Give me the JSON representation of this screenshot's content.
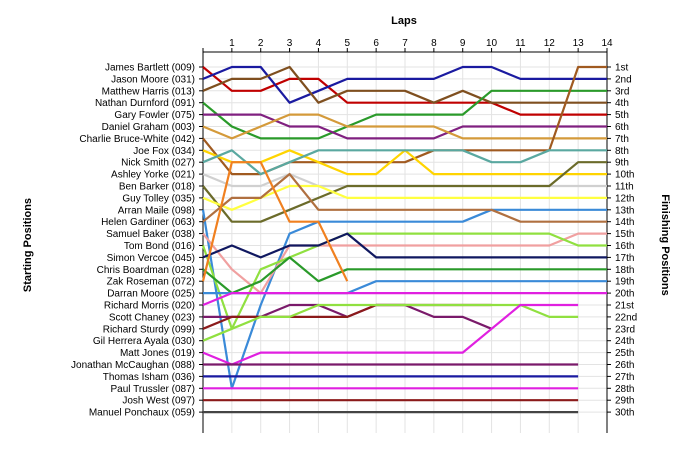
{
  "chart_data": {
    "type": "line",
    "title": "Laps",
    "ylabel_left": "Starting Positions",
    "ylabel_right": "Finishing Positions",
    "laps": [
      1,
      2,
      3,
      4,
      5,
      6,
      7,
      8,
      9,
      10,
      11,
      12,
      13,
      14
    ],
    "grid": true,
    "position_labels": [
      "1st",
      "2nd",
      "3rd",
      "4th",
      "5th",
      "6th",
      "7th",
      "8th",
      "9th",
      "10th",
      "11th",
      "12th",
      "13th",
      "14th",
      "15th",
      "16th",
      "17th",
      "18th",
      "19th",
      "20th",
      "21st",
      "22nd",
      "23rd",
      "24th",
      "25th",
      "26th",
      "27th",
      "28th",
      "29th",
      "30th"
    ],
    "series": [
      {
        "name": "James Bartlett (009)",
        "color": "#c00000",
        "positions": [
          1,
          3,
          3,
          2,
          2,
          4,
          4,
          4,
          4,
          4,
          4,
          5,
          5,
          5,
          5
        ]
      },
      {
        "name": "Jason Moore (031)",
        "color": "#1a1aa0",
        "positions": [
          2,
          1,
          1,
          4,
          3,
          2,
          2,
          2,
          2,
          1,
          1,
          2,
          2,
          2,
          2
        ]
      },
      {
        "name": "Matthew Harris (013)",
        "color": "#7f4f1f",
        "positions": [
          3,
          2,
          2,
          1,
          4,
          3,
          3,
          3,
          4,
          3,
          4,
          4,
          4,
          4,
          4
        ]
      },
      {
        "name": "Nathan Durnford (091)",
        "color": "#2a9a2a",
        "positions": [
          4,
          6,
          7,
          7,
          7,
          6,
          5,
          5,
          5,
          5,
          3,
          3,
          3,
          3,
          3
        ]
      },
      {
        "name": "Gary Fowler (075)",
        "color": "#802080",
        "positions": [
          5,
          5,
          5,
          6,
          6,
          7,
          7,
          7,
          7,
          6,
          6,
          6,
          6,
          6,
          6
        ]
      },
      {
        "name": "Daniel Graham (003)",
        "color": "#d49a3a",
        "positions": [
          6,
          7,
          6,
          5,
          5,
          6,
          6,
          6,
          6,
          7,
          7,
          7,
          7,
          7,
          7
        ]
      },
      {
        "name": "Charlie Bruce-White (042)",
        "color": "#a05a20",
        "positions": [
          7,
          10,
          10,
          9,
          9,
          9,
          9,
          9,
          8,
          8,
          8,
          8,
          8,
          1,
          1
        ]
      },
      {
        "name": "Joe Fox (034)",
        "color": "#ffd400",
        "positions": [
          8,
          9,
          9,
          8,
          9,
          10,
          10,
          8,
          10,
          10,
          10,
          10,
          10,
          10,
          10
        ]
      },
      {
        "name": "Nick Smith (027)",
        "color": "#5aa8a0",
        "positions": [
          9,
          8,
          10,
          9,
          8,
          8,
          8,
          8,
          8,
          8,
          9,
          9,
          8,
          8,
          8
        ]
      },
      {
        "name": "Ashley Yorke (021)",
        "color": "#d0d0d0",
        "positions": [
          10,
          11,
          11,
          10,
          11,
          11,
          11,
          11,
          11,
          11,
          11,
          11,
          11,
          11,
          11
        ]
      },
      {
        "name": "Ben Barker (018)",
        "color": "#6b6b2a",
        "positions": [
          11,
          14,
          14,
          13,
          12,
          11,
          11,
          11,
          11,
          11,
          11,
          11,
          11,
          9,
          9
        ]
      },
      {
        "name": "Guy Tolley (035)",
        "color": "#ffff40",
        "positions": [
          12,
          13,
          12,
          11,
          11,
          12,
          12,
          12,
          12,
          12,
          12,
          12,
          12,
          12,
          12
        ]
      },
      {
        "name": "Arran Maile (098)",
        "color": "#3a8ad8",
        "positions": [
          13,
          28,
          21,
          15,
          14,
          14,
          14,
          14,
          14,
          14,
          13,
          13,
          13,
          13,
          13
        ]
      },
      {
        "name": "Helen Gardiner (063)",
        "color": "#b07040",
        "positions": [
          14,
          12,
          12,
          10,
          13,
          13,
          13,
          13,
          13,
          13,
          13,
          14,
          14,
          14,
          14
        ]
      },
      {
        "name": "Samuel Baker (038)",
        "color": "#f0a0a0",
        "positions": [
          15,
          18,
          20,
          16,
          16,
          16,
          16,
          16,
          16,
          16,
          16,
          16,
          16,
          15,
          15
        ]
      },
      {
        "name": "Tom Bond (016)",
        "color": "#90e040",
        "positions": [
          16,
          23,
          18,
          17,
          16,
          15,
          15,
          15,
          15,
          15,
          15,
          15,
          15,
          16,
          16
        ]
      },
      {
        "name": "Simon Vercoe (045)",
        "color": "#101860",
        "positions": [
          17,
          16,
          17,
          16,
          16,
          15,
          17,
          17,
          17,
          17,
          17,
          17,
          17,
          17,
          17
        ]
      },
      {
        "name": "Chris Boardman (028)",
        "color": "#2a9a2a",
        "positions": [
          18,
          20,
          19,
          17,
          19,
          18,
          18,
          18,
          18,
          18,
          18,
          18,
          18,
          18,
          18
        ]
      },
      {
        "name": "Zak Roseman (072)",
        "color": "#f08020",
        "positions": [
          19,
          9,
          9,
          14,
          14,
          19
        ]
      },
      {
        "name": "Darran Moore (025)",
        "color": "#3a8ad8",
        "positions": [
          20,
          20,
          20,
          20,
          20,
          20,
          19,
          19,
          19,
          19,
          19,
          19,
          19,
          19,
          19
        ]
      },
      {
        "name": "Richard Morris (020)",
        "color": "#e020e0",
        "positions": [
          21,
          20,
          20,
          20,
          20,
          20,
          20,
          20,
          20,
          20,
          20,
          20,
          20,
          20,
          20
        ]
      },
      {
        "name": "Scott Chaney (023)",
        "color": "#7a1a6a",
        "positions": [
          22,
          22,
          22,
          21,
          21,
          22,
          21,
          21,
          22,
          22,
          23
        ]
      },
      {
        "name": "Richard Sturdy (099)",
        "color": "#8b1a1a",
        "positions": [
          23,
          22,
          22,
          22,
          22,
          22,
          21,
          21,
          21,
          21,
          21
        ]
      },
      {
        "name": "Gil Herrera Ayala (030)",
        "color": "#90e040",
        "positions": [
          24,
          23,
          22,
          22,
          21,
          21,
          21,
          21,
          21,
          21,
          21,
          21,
          22,
          22
        ]
      },
      {
        "name": "Matt Jones (019)",
        "color": "#e020e0",
        "positions": [
          25,
          26,
          25,
          25,
          25,
          25,
          25,
          25,
          25,
          25,
          23,
          21,
          21,
          21
        ]
      },
      {
        "name": "Jonathan McCaughan (088)",
        "color": "#7a1a6a",
        "positions": [
          26,
          26,
          26,
          26,
          26,
          26,
          26,
          26,
          26,
          26,
          26,
          26,
          26,
          26
        ]
      },
      {
        "name": "Thomas Isham (036)",
        "color": "#1a1aa0",
        "positions": [
          27,
          27,
          27,
          27,
          27,
          27,
          27,
          27,
          27,
          27,
          27,
          27,
          27,
          27
        ]
      },
      {
        "name": "Paul Trussler (087)",
        "color": "#e020e0",
        "positions": [
          28,
          28,
          28,
          28,
          28,
          28,
          28,
          28,
          28,
          28,
          28,
          28,
          28,
          28
        ]
      },
      {
        "name": "Josh West (097)",
        "color": "#8b1a1a",
        "positions": [
          29,
          29,
          29,
          29,
          29,
          29,
          29,
          29,
          29,
          29,
          29,
          29,
          29,
          29
        ]
      },
      {
        "name": "Manuel Ponchaux (059)",
        "color": "#444444",
        "positions": [
          30,
          30,
          30,
          30,
          30,
          30,
          30,
          30,
          30,
          30,
          30,
          30,
          30,
          30
        ]
      }
    ]
  }
}
